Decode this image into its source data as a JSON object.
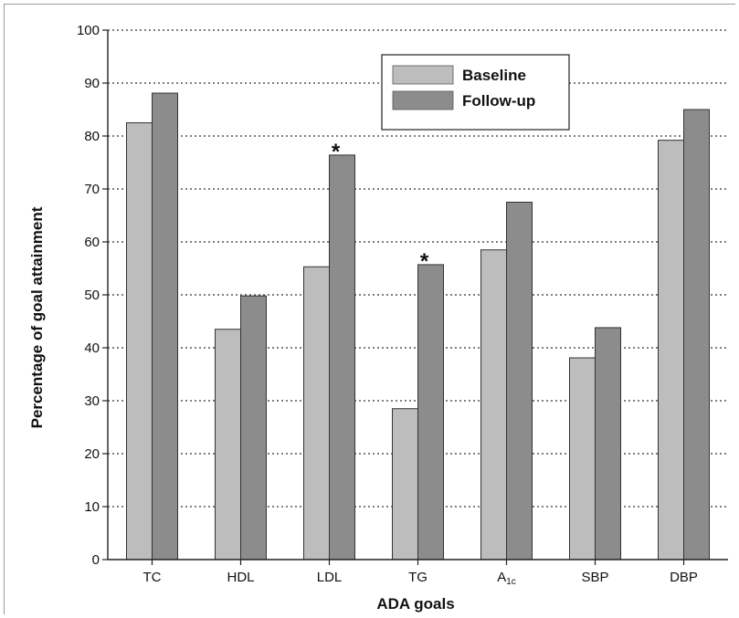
{
  "chart_data": {
    "type": "bar",
    "title": "",
    "xlabel": "ADA goals",
    "ylabel": "Percentage of goal attainment",
    "ylim": [
      0,
      100
    ],
    "yticks": [
      0,
      10,
      20,
      30,
      40,
      50,
      60,
      70,
      80,
      90,
      100
    ],
    "grid": "horizontal dotted",
    "legend_position": "top-right",
    "categories": [
      "TC",
      "HDL",
      "LDL",
      "TG",
      "A1c",
      "SBP",
      "DBP"
    ],
    "category_labels": [
      {
        "main": "TC"
      },
      {
        "main": "HDL"
      },
      {
        "main": "LDL"
      },
      {
        "main": "TG"
      },
      {
        "main": "A",
        "sub": "1c"
      },
      {
        "main": "SBP"
      },
      {
        "main": "DBP"
      }
    ],
    "series": [
      {
        "name": "Baseline",
        "color": "#bdbdbd",
        "values": [
          82.5,
          43.5,
          55.3,
          28.5,
          58.5,
          38.1,
          79.2
        ]
      },
      {
        "name": "Follow-up",
        "color": "#8c8c8c",
        "values": [
          88.1,
          49.8,
          76.4,
          55.7,
          67.5,
          43.8,
          85.0
        ]
      }
    ],
    "annotations": [
      {
        "text": "*",
        "category": "LDL",
        "series": "Follow-up"
      },
      {
        "text": "*",
        "category": "TG",
        "series": "Follow-up"
      }
    ]
  }
}
